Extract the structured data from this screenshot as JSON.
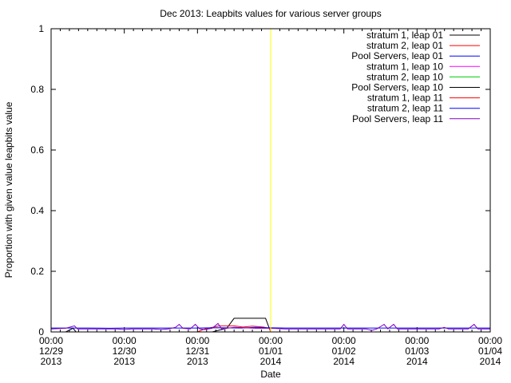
{
  "chart_data": {
    "type": "line",
    "title": "Dec 2013: Leapbits values for various server groups",
    "xlabel": "Date",
    "ylabel": "Proportion with given value leapbits value",
    "ylim": [
      0,
      1
    ],
    "xlim": [
      0,
      6
    ],
    "yticks": [
      {
        "v": 0,
        "label": "0"
      },
      {
        "v": 0.2,
        "label": "0.2"
      },
      {
        "v": 0.4,
        "label": "0.4"
      },
      {
        "v": 0.6,
        "label": "0.6"
      },
      {
        "v": 0.8,
        "label": "0.8"
      },
      {
        "v": 1,
        "label": "1"
      }
    ],
    "xticks": [
      {
        "v": 0,
        "l1": "00:00",
        "l2": "12/29",
        "l3": "2013"
      },
      {
        "v": 1,
        "l1": "00:00",
        "l2": "12/30",
        "l3": "2013"
      },
      {
        "v": 2,
        "l1": "00:00",
        "l2": "12/31",
        "l3": "2013"
      },
      {
        "v": 3,
        "l1": "00:00",
        "l2": "01/01",
        "l3": "2014"
      },
      {
        "v": 4,
        "l1": "00:00",
        "l2": "01/02",
        "l3": "2014"
      },
      {
        "v": 5,
        "l1": "00:00",
        "l2": "01/03",
        "l3": "2014"
      },
      {
        "v": 6,
        "l1": "00:00",
        "l2": "01/04",
        "l3": "2014"
      }
    ],
    "marker": {
      "x": 3,
      "color": "#ffff00"
    },
    "legend_position": "top-right",
    "series": [
      {
        "name": "stratum 1, leap 01",
        "color": "#000000",
        "points": [
          [
            0,
            0
          ],
          [
            0.2,
            0
          ],
          [
            0.3,
            0.012
          ],
          [
            0.34,
            0
          ],
          [
            1.0,
            0
          ],
          [
            1.6,
            0
          ],
          [
            2.0,
            0
          ],
          [
            2.2,
            0
          ],
          [
            2.4,
            0.012
          ],
          [
            2.5,
            0.045
          ],
          [
            2.6,
            0.045
          ],
          [
            2.7,
            0.045
          ],
          [
            2.8,
            0.045
          ],
          [
            2.93,
            0.045
          ],
          [
            3.0,
            0
          ],
          [
            6.0,
            0
          ]
        ]
      },
      {
        "name": "stratum 2, leap 01",
        "color": "#ff0000",
        "points": [
          [
            0,
            0
          ],
          [
            2.0,
            0
          ],
          [
            2.1,
            0.01
          ],
          [
            2.3,
            0.02
          ],
          [
            2.5,
            0.02
          ],
          [
            2.62,
            0.016
          ],
          [
            2.75,
            0.019
          ],
          [
            2.9,
            0.016
          ],
          [
            2.98,
            0.012
          ],
          [
            3.0,
            0
          ],
          [
            6.0,
            0
          ]
        ]
      },
      {
        "name": "Pool Servers, leap 01",
        "color": "#0000ff",
        "points": [
          [
            0,
            0.013
          ],
          [
            0.3,
            0.013
          ],
          [
            0.5,
            0.013
          ],
          [
            0.8,
            0.012
          ],
          [
            1.0,
            0.013
          ],
          [
            1.5,
            0.013
          ],
          [
            1.7,
            0.013
          ],
          [
            2.0,
            0.013
          ],
          [
            2.3,
            0.014
          ],
          [
            2.6,
            0.013
          ],
          [
            2.8,
            0.015
          ],
          [
            2.95,
            0.014
          ],
          [
            3.2,
            0.013
          ],
          [
            3.6,
            0.013
          ],
          [
            4.0,
            0.013
          ],
          [
            4.5,
            0.013
          ],
          [
            5.0,
            0.013
          ],
          [
            5.5,
            0.013
          ],
          [
            6.0,
            0.013
          ]
        ]
      },
      {
        "name": "stratum 1, leap 10",
        "color": "#ff00ff",
        "points": [
          [
            0,
            0
          ],
          [
            6.0,
            0
          ]
        ]
      },
      {
        "name": "stratum 2, leap 10",
        "color": "#00cc00",
        "points": [
          [
            0,
            0
          ],
          [
            6.0,
            0
          ]
        ]
      },
      {
        "name": "Pool Servers, leap 10",
        "color": "#000000",
        "points": [
          [
            0,
            0
          ],
          [
            6.0,
            0
          ]
        ]
      },
      {
        "name": "stratum 1, leap 11",
        "color": "#ff0000",
        "points": [
          [
            0,
            0
          ],
          [
            6.0,
            0
          ]
        ]
      },
      {
        "name": "stratum 2, leap 11",
        "color": "#0000ff",
        "points": [
          [
            0,
            0
          ],
          [
            6.0,
            0
          ]
        ]
      },
      {
        "name": "Pool Servers, leap 11",
        "color": "#8000c0",
        "points": [
          [
            0,
            0.01
          ],
          [
            0.2,
            0.012
          ],
          [
            0.32,
            0.02
          ],
          [
            0.36,
            0.01
          ],
          [
            0.6,
            0.01
          ],
          [
            0.9,
            0.01
          ],
          [
            1.0,
            0.008
          ],
          [
            1.1,
            0.01
          ],
          [
            1.4,
            0.01
          ],
          [
            1.5,
            0.008
          ],
          [
            1.6,
            0.01
          ],
          [
            1.7,
            0.015
          ],
          [
            1.75,
            0.025
          ],
          [
            1.8,
            0.012
          ],
          [
            1.9,
            0.01
          ],
          [
            1.97,
            0.025
          ],
          [
            2.03,
            0.01
          ],
          [
            2.1,
            0.008
          ],
          [
            2.2,
            0.012
          ],
          [
            2.28,
            0.028
          ],
          [
            2.33,
            0.01
          ],
          [
            2.5,
            0.015
          ],
          [
            2.8,
            0.012
          ],
          [
            3.0,
            0.012
          ],
          [
            3.2,
            0.01
          ],
          [
            3.6,
            0.01
          ],
          [
            3.95,
            0.01
          ],
          [
            4.0,
            0.025
          ],
          [
            4.05,
            0.01
          ],
          [
            4.3,
            0.01
          ],
          [
            4.38,
            0.005
          ],
          [
            4.45,
            0.01
          ],
          [
            4.55,
            0.025
          ],
          [
            4.6,
            0.01
          ],
          [
            4.68,
            0.025
          ],
          [
            4.73,
            0.01
          ],
          [
            5.0,
            0.01
          ],
          [
            5.3,
            0.01
          ],
          [
            5.37,
            0.015
          ],
          [
            5.43,
            0.01
          ],
          [
            5.7,
            0.01
          ],
          [
            5.78,
            0.025
          ],
          [
            5.83,
            0.01
          ],
          [
            6.0,
            0.01
          ]
        ]
      }
    ]
  }
}
